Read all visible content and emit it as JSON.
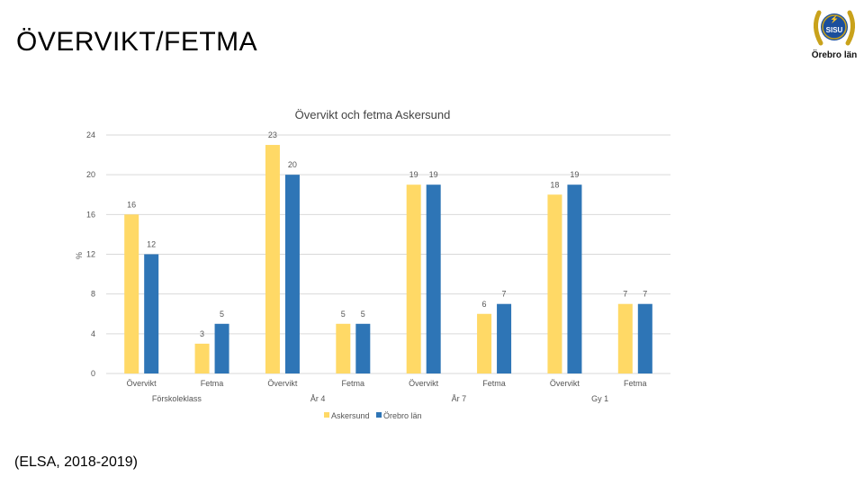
{
  "page": {
    "title": "ÖVERVIKT/FETMA",
    "citation": "(ELSA, 2018-2019)"
  },
  "logo": {
    "text": "Örebro län",
    "badge_text": "SISU",
    "colors": {
      "wreath": "#c9a21b",
      "badge": "#1b4f9c"
    },
    "icon": "sisu-laurel-badge-icon"
  },
  "chart_data": {
    "type": "bar",
    "title": "Övervikt och fetma Askersund",
    "xlabel": "",
    "ylabel": "%",
    "ylim": [
      0,
      24
    ],
    "yticks": [
      0,
      4,
      8,
      12,
      16,
      20,
      24
    ],
    "grid": true,
    "legend_position": "bottom",
    "categories": [
      "Övervikt",
      "Fetma",
      "Övervikt",
      "Fetma",
      "Övervikt",
      "Fetma",
      "Övervikt",
      "Fetma"
    ],
    "groups": [
      {
        "label": "Förskoleklass",
        "categories": [
          "Övervikt",
          "Fetma"
        ]
      },
      {
        "label": "År 4",
        "categories": [
          "Övervikt",
          "Fetma"
        ]
      },
      {
        "label": "År 7",
        "categories": [
          "Övervikt",
          "Fetma"
        ]
      },
      {
        "label": "Gy 1",
        "categories": [
          "Övervikt",
          "Fetma"
        ]
      }
    ],
    "series": [
      {
        "name": "Askersund",
        "color": "#ffd966",
        "values": [
          16,
          3,
          23,
          5,
          19,
          6,
          18,
          7
        ]
      },
      {
        "name": "Örebro län",
        "color": "#2e75b6",
        "values": [
          12,
          5,
          20,
          5,
          19,
          7,
          19,
          7
        ]
      }
    ]
  }
}
